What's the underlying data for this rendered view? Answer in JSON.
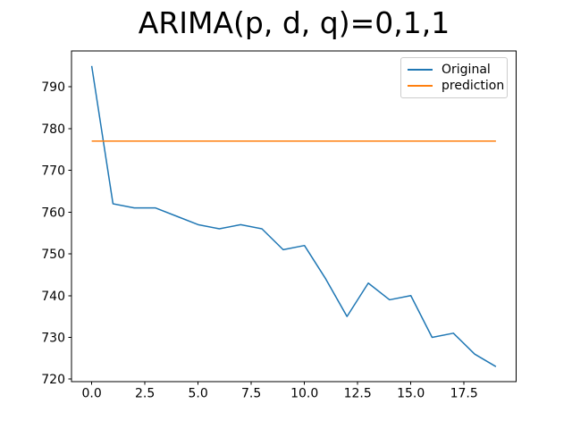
{
  "figure": {
    "background": "#ffffff"
  },
  "chart_data": {
    "type": "line",
    "title": "ARIMA(p, d, q)=0,1,1",
    "xlabel": "",
    "ylabel": "",
    "grid": false,
    "x": [
      0,
      1,
      2,
      3,
      4,
      5,
      6,
      7,
      8,
      9,
      10,
      11,
      12,
      13,
      14,
      15,
      16,
      17,
      18,
      19
    ],
    "series": [
      {
        "name": "Original",
        "color": "#1f77b4",
        "values": [
          795,
          762,
          761,
          761,
          759,
          757,
          756,
          757,
          756,
          751,
          752,
          744,
          735,
          743,
          739,
          740,
          730,
          731,
          726,
          723
        ]
      },
      {
        "name": "prediction",
        "color": "#ff7f0e",
        "values": [
          777,
          777,
          777,
          777,
          777,
          777,
          777,
          777,
          777,
          777,
          777,
          777,
          777,
          777,
          777,
          777,
          777,
          777,
          777,
          777
        ]
      }
    ],
    "xlim": [
      -0.95,
      19.95
    ],
    "ylim": [
      719.4,
      798.6
    ],
    "xticks": [
      0,
      2.5,
      5,
      7.5,
      10,
      12.5,
      15,
      17.5
    ],
    "xtick_labels": [
      "0.0",
      "2.5",
      "5.0",
      "7.5",
      "10.0",
      "12.5",
      "15.0",
      "17.5"
    ],
    "yticks": [
      720,
      730,
      740,
      750,
      760,
      770,
      780,
      790
    ],
    "ytick_labels": [
      "720",
      "730",
      "740",
      "750",
      "760",
      "770",
      "780",
      "790"
    ],
    "legend": {
      "position": "upper right",
      "labels": [
        "Original",
        "prediction"
      ]
    }
  }
}
